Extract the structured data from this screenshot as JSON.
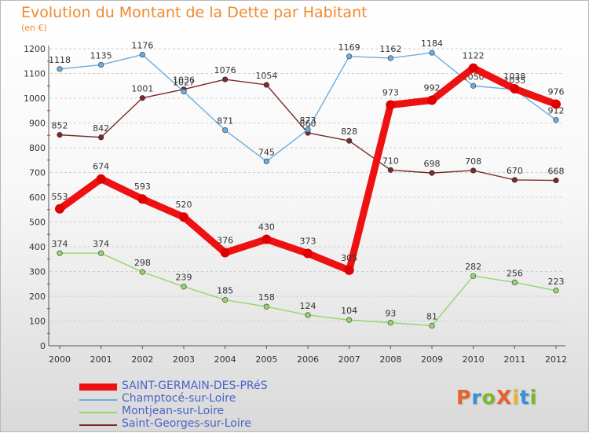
{
  "title": "Evolution du Montant de la Dette par Habitant",
  "unit_label": "(en €)",
  "brand": {
    "text": "ProXiti",
    "letter_colors": [
      "#e8622c",
      "#3a8fd6",
      "#79b82e",
      "#e8622c",
      "#f0b32a",
      "#3a8fd6",
      "#79b82e"
    ]
  },
  "chart_data": {
    "type": "line",
    "x": [
      "2000",
      "2001",
      "2002",
      "2003",
      "2004",
      "2005",
      "2006",
      "2007",
      "2008",
      "2009",
      "2010",
      "2011",
      "2012"
    ],
    "ylim": [
      0,
      1200
    ],
    "yticks": [
      "0",
      "100",
      "200",
      "300",
      "400",
      "500",
      "600",
      "700",
      "800",
      "900",
      "1000",
      "1100",
      "1200"
    ],
    "grid": "horizontal dashed",
    "legend_placement": "bottom-left",
    "series": [
      {
        "name": "Saint-Georges-sur-Loire",
        "color": "#7a2a2a",
        "values": [
          852,
          842,
          1001,
          1036,
          1076,
          1054,
          860,
          828,
          710,
          698,
          708,
          670,
          668
        ],
        "labels": [
          "852",
          "842",
          "1001",
          "1036",
          "1076",
          "1054",
          "860",
          "828",
          "710",
          "698",
          "708",
          "670",
          "668"
        ]
      },
      {
        "name": "Champtocé-sur-Loire",
        "color": "#6aaee0",
        "values": [
          1118,
          1135,
          1176,
          1027,
          871,
          745,
          873,
          1169,
          1162,
          1184,
          1050,
          1035,
          912
        ],
        "labels": [
          "1118",
          "1135",
          "1176",
          "1027",
          "871",
          "745",
          "873",
          "1169",
          "1162",
          "1184",
          "1050",
          "1035",
          "912"
        ]
      },
      {
        "name": "Montjean-sur-Loire",
        "color": "#93d66b",
        "values": [
          374,
          374,
          298,
          239,
          185,
          158,
          124,
          104,
          93,
          81,
          282,
          256,
          223
        ],
        "labels": [
          "374",
          "374",
          "298",
          "239",
          "185",
          "158",
          "124",
          "104",
          "93",
          "81",
          "282",
          "256",
          "223"
        ]
      },
      {
        "name": "SAINT-GERMAIN-DES-PRéS",
        "color": "#ee1111",
        "values": [
          553,
          674,
          593,
          520,
          376,
          430,
          373,
          305,
          973,
          992,
          1122,
          1038,
          976
        ],
        "labels": [
          "553",
          "674",
          "593",
          "520",
          "376",
          "430",
          "373",
          "305",
          "973",
          "992",
          "1122",
          "1038",
          "976"
        ]
      }
    ],
    "legend_order": [
      "SAINT-GERMAIN-DES-PRéS",
      "Champtocé-sur-Loire",
      "Montjean-sur-Loire",
      "Saint-Georges-sur-Loire"
    ]
  }
}
